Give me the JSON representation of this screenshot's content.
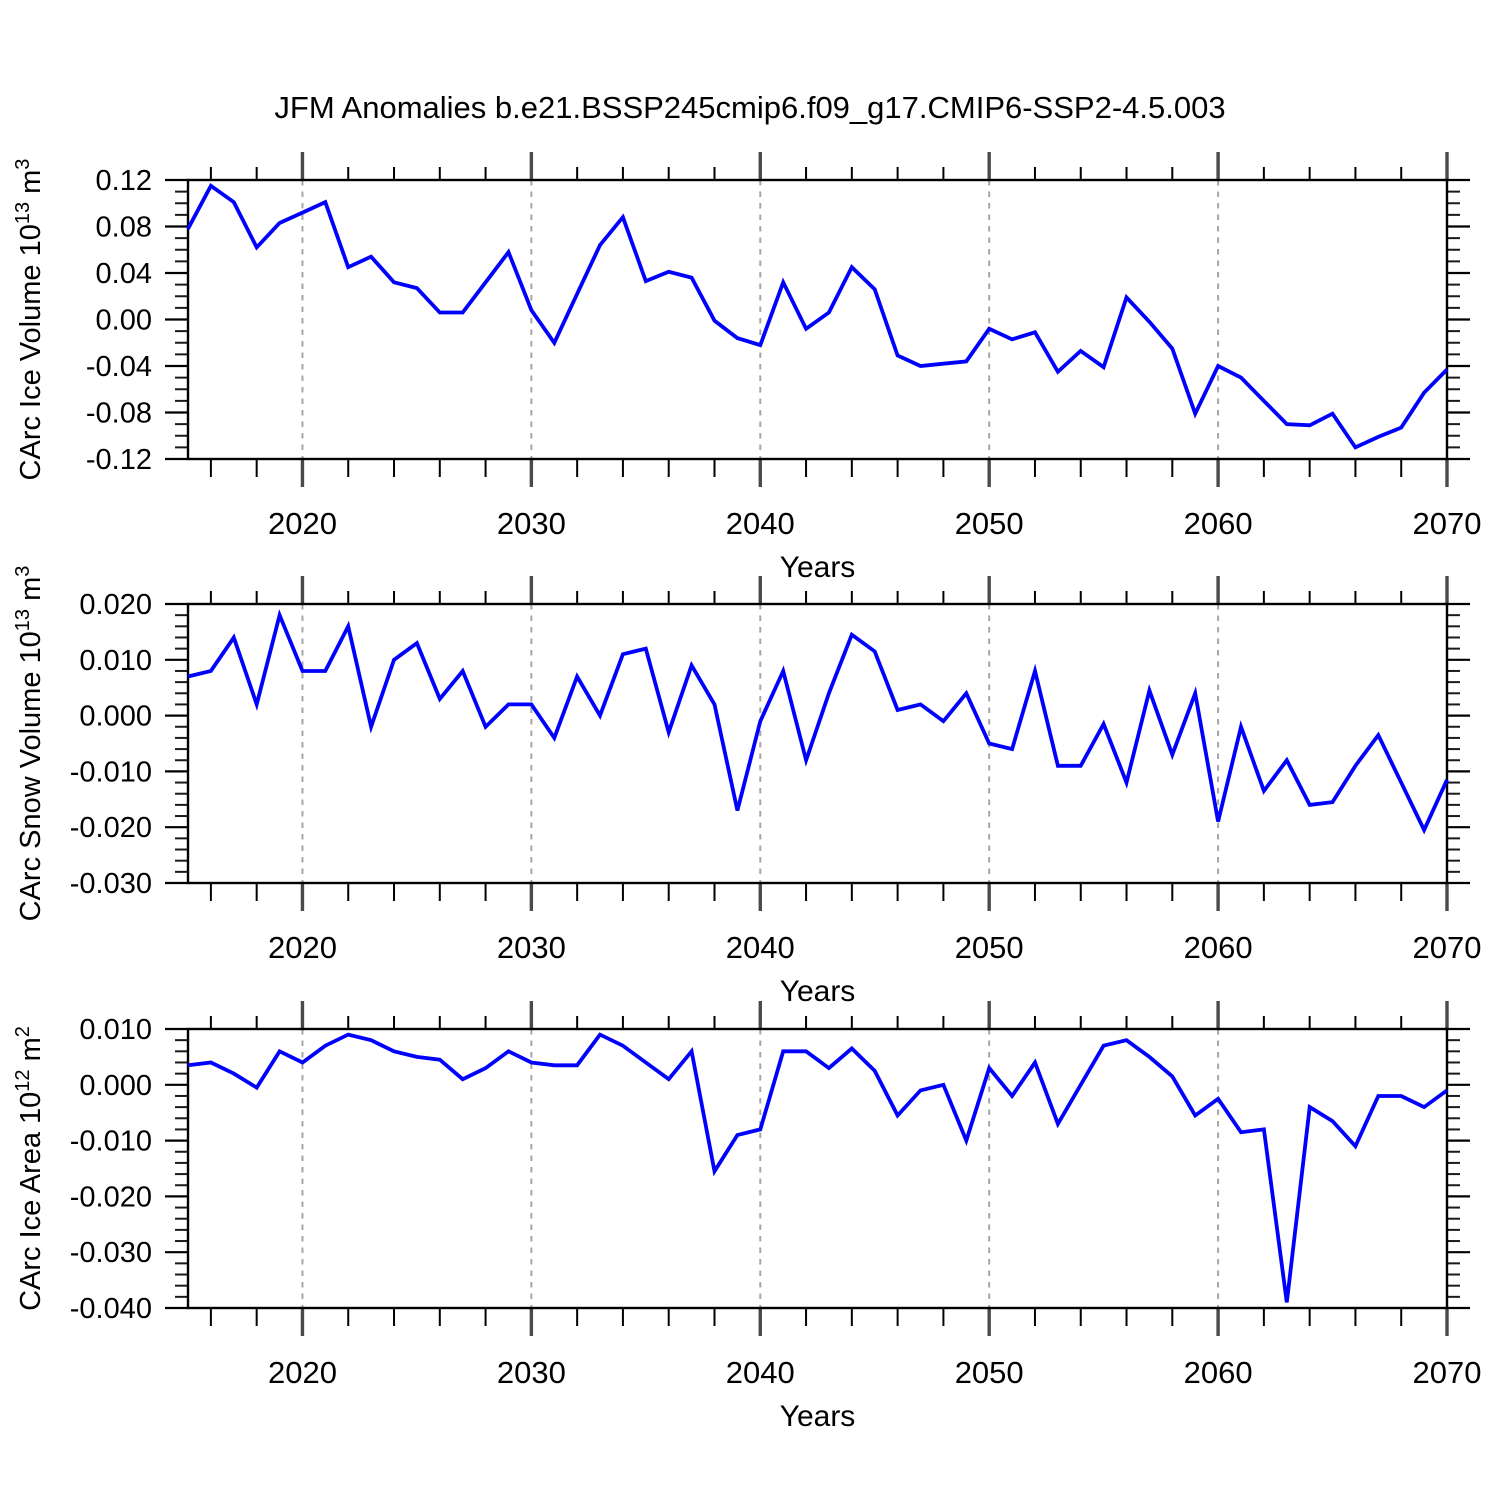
{
  "title": "JFM Anomalies b.e21.BSSP245cmip6.f09_g17.CMIP6-SSP2-4.5.003",
  "colors": {
    "line": "#0000ff",
    "grid_dashed": "#a6a6a6",
    "decade_tick": "#4a4a4a",
    "axis": "#000000"
  },
  "chart_data": {
    "type": "line",
    "title": "JFM Anomalies b.e21.BSSP245cmip6.f09_g17.CMIP6-SSP2-4.5.003",
    "xlabel": "Years",
    "xlim": [
      2015,
      2070
    ],
    "xticks_major": [
      2020,
      2030,
      2040,
      2050,
      2060,
      2070
    ],
    "xtick_labels": [
      "2020",
      "2030",
      "2040",
      "2050",
      "2060",
      "2070"
    ],
    "xticks_minor_step": 2,
    "grid_decades": [
      2020,
      2030,
      2040,
      2050,
      2060
    ],
    "legend": "none",
    "grid": "vertical-dashed-at-decades",
    "x": [
      2015,
      2016,
      2017,
      2018,
      2019,
      2020,
      2021,
      2022,
      2023,
      2024,
      2025,
      2026,
      2027,
      2028,
      2029,
      2030,
      2031,
      2032,
      2033,
      2034,
      2035,
      2036,
      2037,
      2038,
      2039,
      2040,
      2041,
      2042,
      2043,
      2044,
      2045,
      2046,
      2047,
      2048,
      2049,
      2050,
      2051,
      2052,
      2053,
      2054,
      2055,
      2056,
      2057,
      2058,
      2059,
      2060,
      2061,
      2062,
      2063,
      2064,
      2065,
      2066,
      2067,
      2068,
      2069,
      2070
    ],
    "panels": [
      {
        "id": "ice-volume",
        "ylabel": "CArc Ice Volume 10^13 m^3",
        "ylabel_parts": [
          {
            "text": "CArc Ice Volume 10"
          },
          {
            "text": "13",
            "sup": true
          },
          {
            "text": " m"
          },
          {
            "text": "3",
            "sup": true
          }
        ],
        "ylim": [
          -0.12,
          0.12
        ],
        "yticks": [
          {
            "value": 0.12,
            "label": "0.12"
          },
          {
            "value": 0.08,
            "label": "0.08"
          },
          {
            "value": 0.04,
            "label": "0.04"
          },
          {
            "value": 0.0,
            "label": "0.00"
          },
          {
            "value": -0.04,
            "label": "-0.04"
          },
          {
            "value": -0.08,
            "label": "-0.08"
          },
          {
            "value": -0.12,
            "label": "-0.12"
          }
        ],
        "ytick_minor_step": 0.01,
        "values": [
          0.078,
          0.115,
          0.101,
          0.062,
          0.083,
          0.092,
          0.101,
          0.045,
          0.054,
          0.032,
          0.027,
          0.006,
          0.006,
          0.032,
          0.058,
          0.008,
          -0.02,
          0.022,
          0.064,
          0.088,
          0.033,
          0.041,
          0.036,
          -0.001,
          -0.016,
          -0.022,
          0.032,
          -0.008,
          0.006,
          0.045,
          0.026,
          -0.031,
          -0.04,
          -0.038,
          -0.036,
          -0.008,
          -0.017,
          -0.011,
          -0.045,
          -0.027,
          -0.041,
          0.019,
          -0.002,
          -0.025,
          -0.081,
          -0.04,
          -0.05,
          -0.07,
          -0.09,
          -0.091,
          -0.081,
          -0.11,
          -0.101,
          -0.093,
          -0.063,
          -0.043
        ]
      },
      {
        "id": "snow-volume",
        "ylabel": "CArc Snow Volume 10^13 m^3",
        "ylabel_parts": [
          {
            "text": "CArc Snow Volume 10"
          },
          {
            "text": "13",
            "sup": true
          },
          {
            "text": " m"
          },
          {
            "text": "3",
            "sup": true
          }
        ],
        "ylim": [
          -0.03,
          0.02
        ],
        "yticks": [
          {
            "value": 0.02,
            "label": "0.020"
          },
          {
            "value": 0.01,
            "label": "0.010"
          },
          {
            "value": 0.0,
            "label": "0.000"
          },
          {
            "value": -0.01,
            "label": "-0.010"
          },
          {
            "value": -0.02,
            "label": "-0.020"
          },
          {
            "value": -0.03,
            "label": "-0.030"
          }
        ],
        "ytick_minor_step": 0.002,
        "values": [
          0.007,
          0.008,
          0.014,
          0.002,
          0.018,
          0.008,
          0.008,
          0.016,
          -0.002,
          0.01,
          0.013,
          0.003,
          0.008,
          -0.002,
          0.002,
          0.002,
          -0.004,
          0.007,
          0.0,
          0.011,
          0.012,
          -0.003,
          0.009,
          0.002,
          -0.017,
          -0.001,
          0.008,
          -0.008,
          0.004,
          0.0145,
          0.0115,
          0.001,
          0.002,
          -0.001,
          0.004,
          -0.005,
          -0.006,
          0.008,
          -0.009,
          -0.009,
          -0.0015,
          -0.012,
          0.0045,
          -0.007,
          0.004,
          -0.019,
          -0.002,
          -0.0135,
          -0.008,
          -0.016,
          -0.0155,
          -0.009,
          -0.0035,
          -0.012,
          -0.0205,
          -0.0115
        ]
      },
      {
        "id": "ice-area",
        "ylabel": "CArc Ice Area 10^12 m^2",
        "ylabel_parts": [
          {
            "text": "CArc Ice Area 10"
          },
          {
            "text": "12",
            "sup": true
          },
          {
            "text": " m"
          },
          {
            "text": "2",
            "sup": true
          }
        ],
        "ylim": [
          -0.04,
          0.01
        ],
        "yticks": [
          {
            "value": 0.01,
            "label": "0.010"
          },
          {
            "value": 0.0,
            "label": "0.000"
          },
          {
            "value": -0.01,
            "label": "-0.010"
          },
          {
            "value": -0.02,
            "label": "-0.020"
          },
          {
            "value": -0.03,
            "label": "-0.030"
          },
          {
            "value": -0.04,
            "label": "-0.040"
          }
        ],
        "ytick_minor_step": 0.002,
        "values": [
          0.0035,
          0.004,
          0.002,
          -0.0005,
          0.006,
          0.004,
          0.007,
          0.009,
          0.008,
          0.006,
          0.005,
          0.0045,
          0.001,
          0.003,
          0.006,
          0.004,
          0.0035,
          0.0035,
          0.009,
          0.007,
          0.004,
          0.001,
          0.006,
          -0.0155,
          -0.009,
          -0.008,
          0.006,
          0.006,
          0.003,
          0.0065,
          0.0025,
          -0.0055,
          -0.001,
          0.0,
          -0.01,
          0.003,
          -0.002,
          0.004,
          -0.007,
          0.0,
          0.007,
          0.008,
          0.005,
          0.0015,
          -0.0055,
          -0.0025,
          -0.0085,
          -0.008,
          -0.039,
          -0.004,
          -0.0065,
          -0.011,
          -0.002,
          -0.002,
          -0.004,
          -0.001
        ]
      }
    ]
  }
}
